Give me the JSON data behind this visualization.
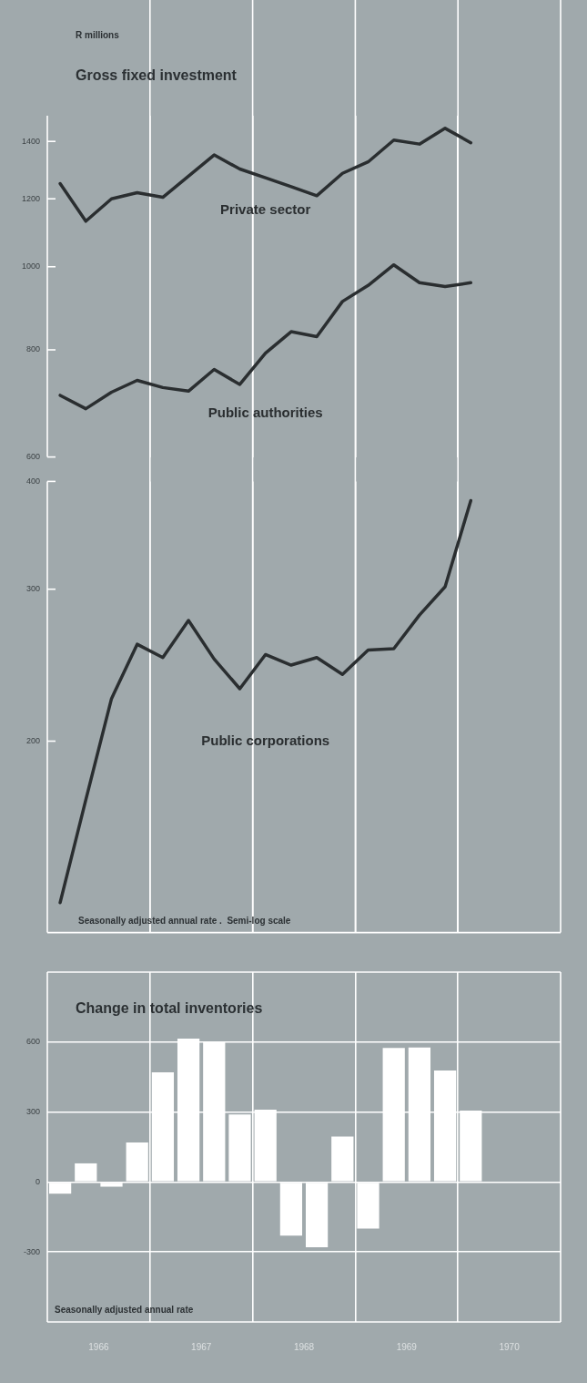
{
  "chart_data": [
    {
      "type": "line",
      "title": "Gross fixed investment",
      "ylabel": "R millions",
      "x": [
        1966.125,
        1966.375,
        1966.625,
        1966.875,
        1967.125,
        1967.375,
        1967.625,
        1967.875,
        1968.125,
        1968.375,
        1968.625,
        1968.875,
        1969.125,
        1969.375,
        1969.625,
        1969.875,
        1970.125
      ],
      "series": [
        {
          "name": "Private sector",
          "color": "#2a2e30",
          "values": [
            1250,
            1130,
            1200,
            1220,
            1205,
            1275,
            1350,
            1300,
            1270,
            1240,
            1210,
            1285,
            1325,
            1405,
            1390,
            1450,
            1395
          ]
        },
        {
          "name": "Public authorities",
          "color": "#2a2e30",
          "values": [
            708,
            683,
            714,
            737,
            723,
            716,
            759,
            729,
            793,
            840,
            829,
            911,
            951,
            1005,
            958,
            948,
            958
          ]
        }
      ],
      "xlim": [
        1966,
        1971
      ],
      "xticks": [
        {
          "value": 1967,
          "label": null
        },
        {
          "value": 1968,
          "label": null
        },
        {
          "value": 1969,
          "label": null
        },
        {
          "value": 1970,
          "label": null
        }
      ],
      "ylim": [
        600,
        1500
      ],
      "yticks": [
        600,
        800,
        1000,
        1200,
        1400
      ],
      "log": true,
      "grid": "x",
      "tick_labels": "y",
      "marker": "none"
    },
    {
      "type": "line",
      "annotations": [
        "Seasonally adjusted annual rate .  Semi-log scale"
      ],
      "x": [
        1966.125,
        1966.375,
        1966.625,
        1966.875,
        1967.125,
        1967.375,
        1967.625,
        1967.875,
        1968.125,
        1968.375,
        1968.625,
        1968.875,
        1969.125,
        1969.375,
        1969.625,
        1969.875,
        1970.125
      ],
      "series": [
        {
          "name": "Public corporations",
          "color": "#2a2e30",
          "values": [
            130,
            171,
            224,
            259,
            250,
            276,
            249,
            230,
            252,
            245,
            250,
            239,
            255,
            256,
            280,
            302,
            380
          ]
        }
      ],
      "xlim": [
        1966,
        1971
      ],
      "xticks": [
        {
          "value": 1967,
          "label": null
        },
        {
          "value": 1968,
          "label": null
        },
        {
          "value": 1969,
          "label": null
        },
        {
          "value": 1970,
          "label": null
        }
      ],
      "ylim": [
        120,
        400
      ],
      "yticks": [
        200,
        300,
        400
      ],
      "log": true,
      "grid": "x",
      "tick_labels": "y",
      "marker": "none"
    },
    {
      "type": "bar",
      "title": "Change in total inventories",
      "annotations": [
        "Seasonally adjusted annual rate"
      ],
      "x": [
        1966.125,
        1966.375,
        1966.625,
        1966.875,
        1967.125,
        1967.375,
        1967.625,
        1967.875,
        1968.125,
        1968.375,
        1968.625,
        1968.875,
        1969.125,
        1969.375,
        1969.625,
        1969.875,
        1970.125
      ],
      "values": [
        -50,
        80,
        -20,
        170,
        470,
        615,
        600,
        290,
        310,
        -230,
        -280,
        195,
        -200,
        575,
        577,
        478,
        306
      ],
      "color": "#ffffff",
      "xlim": [
        1966,
        1971
      ],
      "xticks": [
        {
          "value": 1966.5,
          "label": "1966"
        },
        {
          "value": 1967,
          "label": null
        },
        {
          "value": 1967.5,
          "label": "1967"
        },
        {
          "value": 1968,
          "label": null
        },
        {
          "value": 1968.5,
          "label": "1968"
        },
        {
          "value": 1969,
          "label": null
        },
        {
          "value": 1969.5,
          "label": "1969"
        },
        {
          "value": 1970,
          "label": null
        },
        {
          "value": 1970.5,
          "label": "1970"
        }
      ],
      "ylim": [
        -600,
        900
      ],
      "yticks": [
        -300,
        0,
        300,
        600
      ],
      "grid": true
    }
  ]
}
